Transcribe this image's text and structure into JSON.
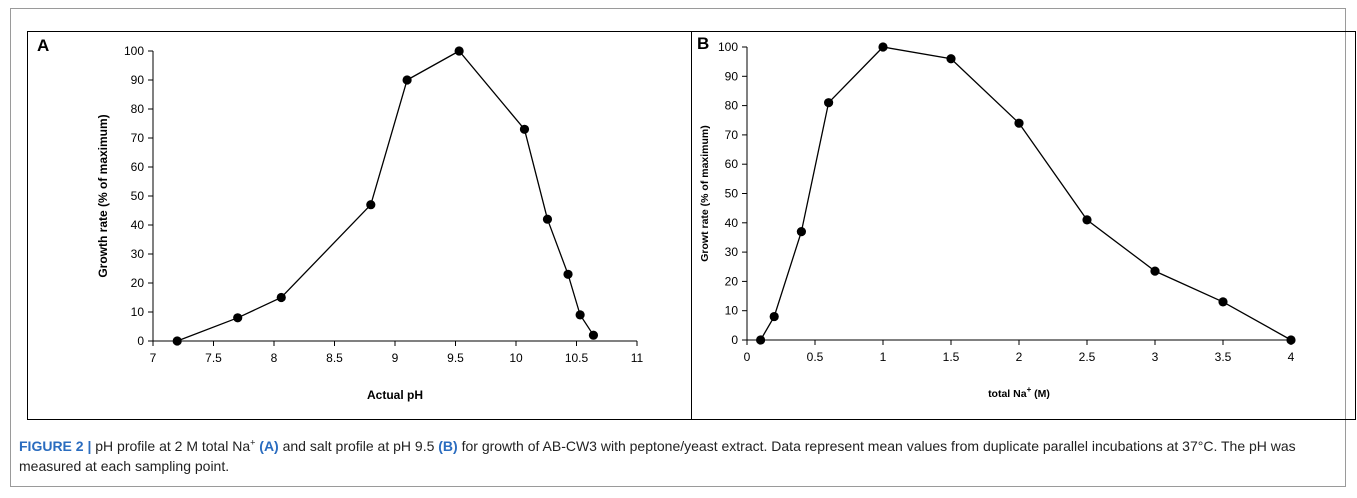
{
  "chart_data": [
    {
      "panel_letter": "A",
      "type": "line",
      "x": [
        7.2,
        7.7,
        8.06,
        8.8,
        9.1,
        9.53,
        10.07,
        10.26,
        10.43,
        10.53,
        10.64
      ],
      "values": [
        0,
        8,
        15,
        47,
        90,
        100,
        73,
        42,
        23,
        9,
        2
      ],
      "xlabel": "Actual pH",
      "ylabel": "Growth rate (% of maximum)",
      "xlim": [
        7,
        11
      ],
      "ylim": [
        0,
        100
      ],
      "xticks": [
        "7",
        "7.5",
        "8",
        "8.5",
        "9",
        "9.5",
        "10",
        "10.5",
        "11"
      ],
      "yticks": [
        "0",
        "10",
        "20",
        "30",
        "40",
        "50",
        "60",
        "70",
        "80",
        "90",
        "100"
      ],
      "grid": false,
      "marker": "filled-circle",
      "color": "#000000"
    },
    {
      "panel_letter": "B",
      "type": "line",
      "x": [
        0.1,
        0.2,
        0.4,
        0.6,
        1.0,
        1.5,
        2.0,
        2.5,
        3.0,
        3.5,
        4.0
      ],
      "values": [
        0,
        8,
        37,
        81,
        100,
        96,
        74,
        41,
        23.5,
        13,
        0
      ],
      "xlabel_prefix": "total Na",
      "xlabel_sup": "+",
      "xlabel_suffix": " (M)",
      "ylabel": "Growt rate (% of maximum)",
      "xlim": [
        0,
        4
      ],
      "ylim": [
        0,
        100
      ],
      "xticks": [
        "0",
        "0.5",
        "1",
        "1.5",
        "2",
        "2.5",
        "3",
        "3.5",
        "4"
      ],
      "yticks": [
        "0",
        "10",
        "20",
        "30",
        "40",
        "50",
        "60",
        "70",
        "80",
        "90",
        "100"
      ],
      "grid": false,
      "marker": "filled-circle",
      "color": "#000000"
    }
  ],
  "caption": {
    "figure_label": "FIGURE 2 |",
    "t1": " pH profile at 2 M total Na",
    "sup1": "+",
    "t2": " ",
    "ref_a": "(A)",
    "t3": " and salt profile at pH 9.5 ",
    "ref_b": "(B)",
    "t4": " for growth of AB-CW3 with peptone/yeast extract. Data represent mean values from duplicate parallel incubations at 37°C. The pH was measured at each sampling point."
  },
  "colors": {
    "caption_label": "#2a6cbf",
    "line": "#000000",
    "frame": "#9a9a9a"
  }
}
